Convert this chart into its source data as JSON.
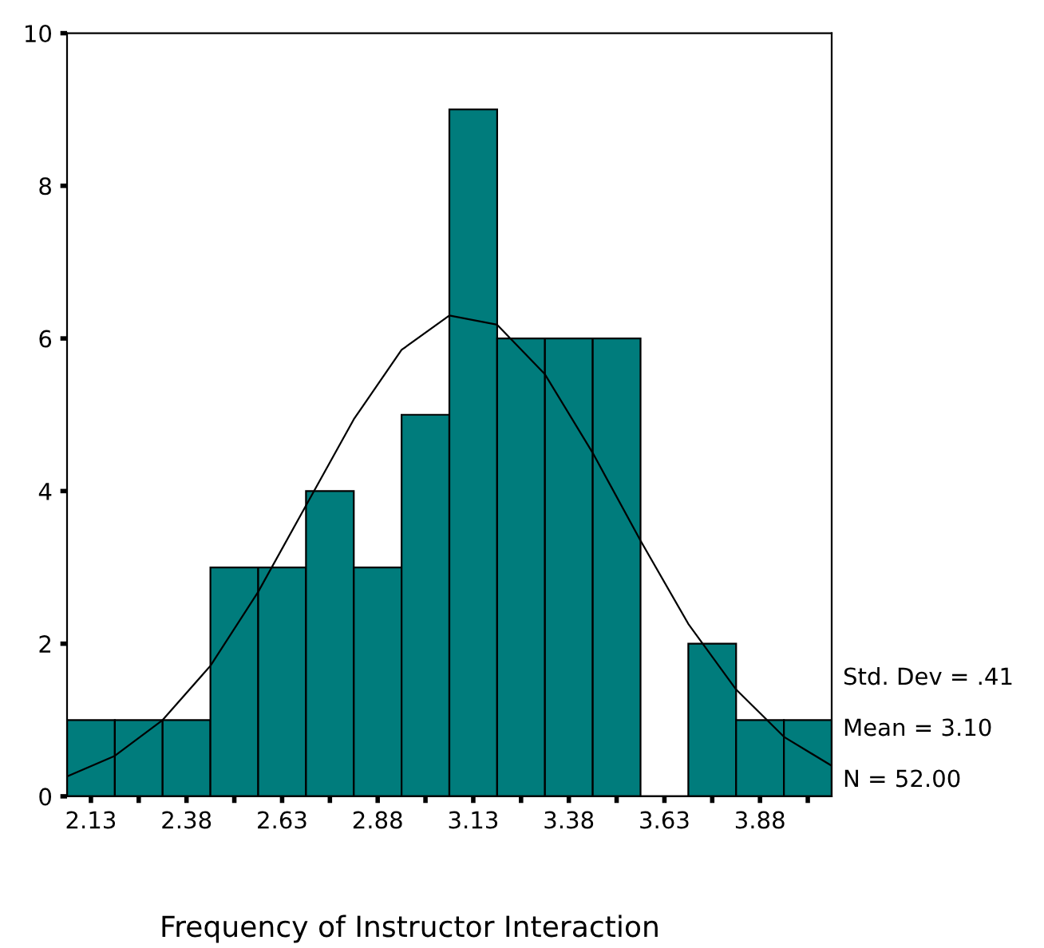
{
  "chart_data": {
    "type": "histogram",
    "xlabel": "Frequency of Instructor Interaction",
    "bins": [
      2.0625,
      2.1875,
      2.3125,
      2.4375,
      2.5625,
      2.6875,
      2.8125,
      2.9375,
      3.0625,
      3.1875,
      3.3125,
      3.4375,
      3.5625,
      3.6875,
      3.8125,
      3.9375,
      4.0625
    ],
    "values": [
      1,
      1,
      1,
      3,
      3,
      4,
      3,
      5,
      9,
      6,
      6,
      6,
      0,
      2,
      1,
      1
    ],
    "color": "#007c7c",
    "series": [
      {
        "type": "line",
        "color": "#000000",
        "x": [
          2.0625,
          2.1875,
          2.3125,
          2.4375,
          2.5625,
          2.6875,
          2.8125,
          2.9375,
          3.0625,
          3.1875,
          3.3125,
          3.4375,
          3.5625,
          3.6875,
          3.8125,
          3.9375,
          4.0625
        ],
        "values": [
          0.26,
          0.53,
          1.0,
          1.71,
          2.68,
          3.81,
          4.94,
          5.85,
          6.3,
          6.18,
          5.53,
          4.5,
          3.35,
          2.26,
          1.4,
          0.78,
          0.4
        ]
      }
    ],
    "xlim": [
      2.0625,
      4.0625
    ],
    "xticks": [
      {
        "value": 2.125,
        "label": "2.13"
      },
      {
        "value": 2.25,
        "label": null
      },
      {
        "value": 2.375,
        "label": "2.38"
      },
      {
        "value": 2.5,
        "label": null
      },
      {
        "value": 2.625,
        "label": "2.63"
      },
      {
        "value": 2.75,
        "label": null
      },
      {
        "value": 2.875,
        "label": "2.88"
      },
      {
        "value": 3.0,
        "label": null
      },
      {
        "value": 3.125,
        "label": "3.13"
      },
      {
        "value": 3.25,
        "label": null
      },
      {
        "value": 3.375,
        "label": "3.38"
      },
      {
        "value": 3.5,
        "label": null
      },
      {
        "value": 3.625,
        "label": "3.63"
      },
      {
        "value": 3.75,
        "label": null
      },
      {
        "value": 3.875,
        "label": "3.88"
      },
      {
        "value": 4.0,
        "label": null
      }
    ],
    "ylim": [
      0,
      10
    ],
    "yticks": [
      0,
      2,
      4,
      6,
      8,
      10
    ],
    "grid": false,
    "annotations": [
      "Std. Dev = .41",
      "Mean = 3.10",
      "N = 52.00"
    ]
  }
}
